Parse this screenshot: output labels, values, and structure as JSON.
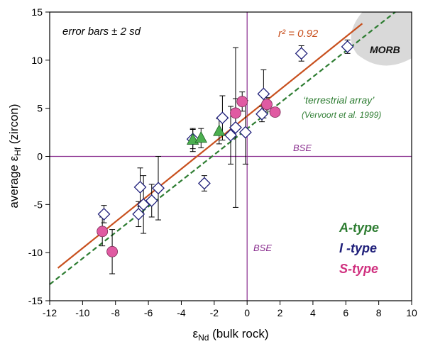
{
  "chart_data": {
    "type": "scatter",
    "xlabel_main": "ε",
    "xlabel_sub": "Nd",
    "xlabel_rest": " (bulk rock)",
    "ylabel_main": "average ε",
    "ylabel_sub": "Hf",
    "ylabel_rest": " (zircon)",
    "xlim": [
      -12,
      10
    ],
    "ylim": [
      -15,
      15
    ],
    "xticks": [
      -12,
      -10,
      -8,
      -6,
      -4,
      -2,
      0,
      2,
      4,
      6,
      8,
      10
    ],
    "yticks": [
      -15,
      -10,
      -5,
      0,
      5,
      10,
      15
    ],
    "colors": {
      "axis": "#000000",
      "bse_line": "#8a2f8f",
      "regression": "#c8501e",
      "terrestrial": "#2e7d32",
      "a_type": "#4caf50",
      "i_type": "#1f1f7a",
      "s_type": "#e05aa2",
      "morb": "#d9d9d9"
    },
    "annotations": {
      "error_bars": "error bars ± 2 sd",
      "r2": "r² = 0.92",
      "terrestrial_array": "‘terrestrial array’",
      "terrestrial_ref": "(Vervoort et al. 1999)",
      "bse_horizontal": "BSE",
      "bse_vertical": "BSE",
      "morb": "MORB"
    },
    "legend": {
      "a_type": "A-type",
      "i_type": "I -type",
      "s_type": "S-type"
    },
    "bse_x": 0,
    "bse_y": 0,
    "regression_line": {
      "x": [
        -11.5,
        7
      ],
      "y": [
        -11.6,
        13.8
      ]
    },
    "terrestrial_array_line": {
      "x": [
        -12,
        9
      ],
      "y": [
        -13.3,
        15
      ]
    },
    "series": [
      {
        "name": "A-type",
        "marker": "triangle",
        "points": [
          {
            "x": -3.3,
            "y": 1.7,
            "err": 1.2
          },
          {
            "x": -2.8,
            "y": 1.9,
            "err": 1.0
          },
          {
            "x": -1.7,
            "y": 2.6,
            "err": 1.3
          }
        ]
      },
      {
        "name": "I -type",
        "marker": "diamond",
        "points": [
          {
            "x": -8.7,
            "y": -6.0,
            "err": 0.9
          },
          {
            "x": -6.6,
            "y": -6.0,
            "err": 1.3
          },
          {
            "x": -6.5,
            "y": -3.2,
            "err": 2.0
          },
          {
            "x": -6.3,
            "y": -5.0,
            "err": 3.0
          },
          {
            "x": -5.8,
            "y": -4.6,
            "err": 1.7
          },
          {
            "x": -5.4,
            "y": -3.3,
            "err": 3.3
          },
          {
            "x": -3.3,
            "y": 1.8,
            "err": 1.0
          },
          {
            "x": -2.6,
            "y": -2.8,
            "err": 0.8
          },
          {
            "x": -1.5,
            "y": 4.0,
            "err": 2.3
          },
          {
            "x": -1.0,
            "y": 2.2,
            "err": 3.0
          },
          {
            "x": -0.7,
            "y": 3.0,
            "err": 8.3
          },
          {
            "x": -0.1,
            "y": 2.5,
            "err": 3.3
          },
          {
            "x": 0.9,
            "y": 4.4,
            "err": 0.8
          },
          {
            "x": 1.0,
            "y": 6.5,
            "err": 2.5
          },
          {
            "x": 3.3,
            "y": 10.7,
            "err": 0.8
          },
          {
            "x": 6.1,
            "y": 11.4,
            "err": 0.7
          }
        ]
      },
      {
        "name": "S-type",
        "marker": "circle",
        "points": [
          {
            "x": -8.8,
            "y": -7.8,
            "err": 1.5
          },
          {
            "x": -8.2,
            "y": -9.9,
            "err": 2.3
          },
          {
            "x": -0.7,
            "y": 4.5,
            "err": 1.5
          },
          {
            "x": -0.3,
            "y": 5.7,
            "err": 1.0
          },
          {
            "x": 1.2,
            "y": 5.4,
            "err": 0.7
          },
          {
            "x": 1.7,
            "y": 4.6,
            "err": 0
          }
        ]
      }
    ]
  }
}
